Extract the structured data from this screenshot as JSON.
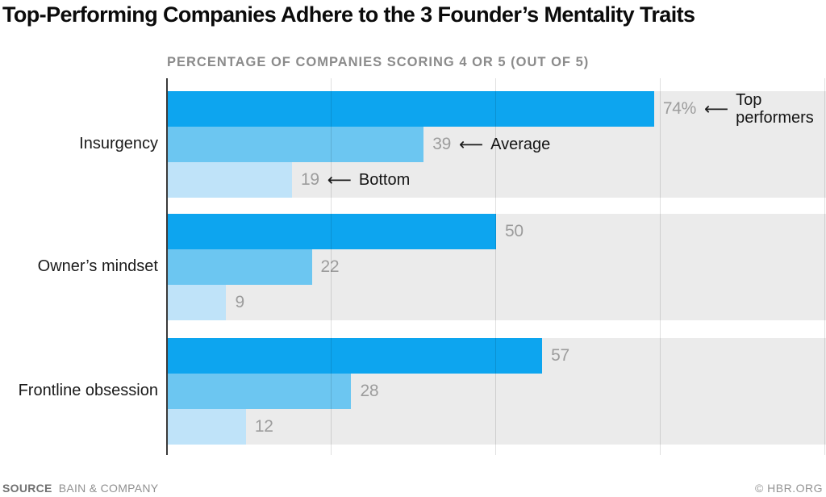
{
  "title": "Top-Performing Companies Adhere to the 3 Founder’s Mentality Traits",
  "subtitle": "PERCENTAGE OF COMPANIES SCORING 4 OR 5 (OUT OF 5)",
  "footer": {
    "source_label": "SOURCE",
    "source_value": "BAIN & COMPANY",
    "credit": "© HBR.ORG"
  },
  "icons": {
    "left_arrow_glyph": "⟵"
  },
  "colors": {
    "bar_top_performers": "#0da5ef",
    "bar_average": "#6cc6f1",
    "bar_bottom": "#bfe3f9",
    "track": "#ebebeb",
    "axis": "#3a3a3a",
    "value_label": "#9c9c9c"
  },
  "chart_data": {
    "type": "bar",
    "orientation": "horizontal",
    "xlim": [
      0,
      100
    ],
    "gridlines": [
      25,
      50,
      75,
      100
    ],
    "grid": true,
    "legend_position": "inline-annotations-first-group",
    "series_names": [
      "Top performers",
      "Average",
      "Bottom"
    ],
    "series_colors": [
      "#0da5ef",
      "#6cc6f1",
      "#bfe3f9"
    ],
    "categories": [
      "Insurgency",
      "Owner’s mindset",
      "Frontline obsession"
    ],
    "groups": [
      {
        "category": "Insurgency",
        "bars": [
          {
            "series": "Top performers",
            "value": 74,
            "label": "74%",
            "annotation": "Top performers"
          },
          {
            "series": "Average",
            "value": 39,
            "label": "39",
            "annotation": "Average"
          },
          {
            "series": "Bottom",
            "value": 19,
            "label": "19",
            "annotation": "Bottom"
          }
        ]
      },
      {
        "category": "Owner’s mindset",
        "bars": [
          {
            "series": "Top performers",
            "value": 50,
            "label": "50",
            "annotation": ""
          },
          {
            "series": "Average",
            "value": 22,
            "label": "22",
            "annotation": ""
          },
          {
            "series": "Bottom",
            "value": 9,
            "label": "9",
            "annotation": ""
          }
        ]
      },
      {
        "category": "Frontline obsession",
        "bars": [
          {
            "series": "Top performers",
            "value": 57,
            "label": "57",
            "annotation": ""
          },
          {
            "series": "Average",
            "value": 28,
            "label": "28",
            "annotation": ""
          },
          {
            "series": "Bottom",
            "value": 12,
            "label": "12",
            "annotation": ""
          }
        ]
      }
    ]
  }
}
